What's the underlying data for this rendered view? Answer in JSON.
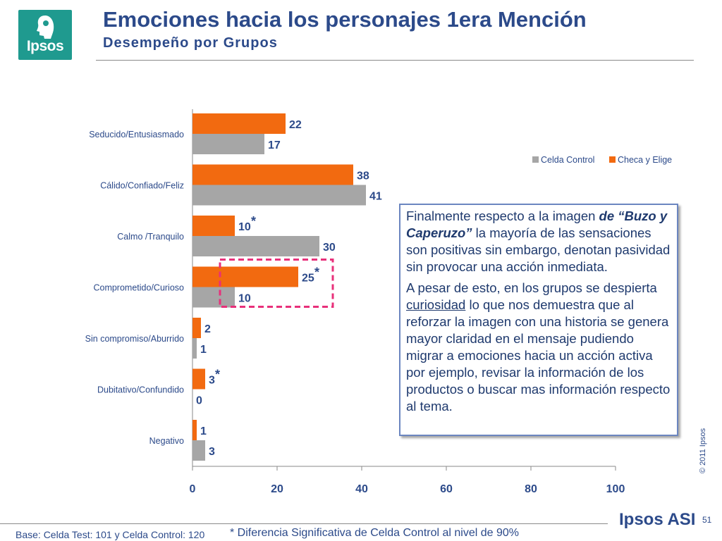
{
  "logo": {
    "text": "Ipsos"
  },
  "header": {
    "title": "Emociones hacia los personajes 1era Mención",
    "subtitle": "Desempeño por Grupos"
  },
  "colors": {
    "checa": "#f26a10",
    "control": "#a6a6a6",
    "accent": "#e8307a",
    "text": "#2c4a8a"
  },
  "chart_data": {
    "type": "bar",
    "orientation": "horizontal",
    "categories": [
      "Seducido/Entusiasmado",
      "Cálido/Confiado/Feliz",
      "Calmo /Tranquilo",
      "Comprometido/Curioso",
      "Sin compromiso/Aburrido",
      "Dubitativo/Confundido",
      "Negativo"
    ],
    "series": [
      {
        "name": "Checa y Elige",
        "values": [
          22,
          38,
          10,
          25,
          2,
          3,
          1
        ]
      },
      {
        "name": "Celda Control",
        "values": [
          17,
          41,
          30,
          10,
          1,
          0,
          3
        ]
      }
    ],
    "significance": [
      "",
      "",
      "*",
      "*",
      "",
      "*",
      ""
    ],
    "highlighted_category": "Comprometido/Curioso",
    "xlim": [
      0,
      100
    ],
    "xticks": [
      0,
      20,
      40,
      60,
      80,
      100
    ],
    "legend": {
      "placement": "top-right",
      "entries": [
        "Celda Control",
        "Checa y Elige"
      ]
    },
    "grid": false
  },
  "callout": {
    "p1_a": "Finalmente respecto a la imagen ",
    "p1_b": "de “Buzo y Caperuzo”",
    "p1_c": " la mayoría de las sensaciones son positivas sin embargo, denotan pasividad sin provocar una acción inmediata.",
    "p2_a": "A pesar de esto, en los grupos se despierta ",
    "p2_b": "curiosidad",
    "p2_c": " lo que nos demuestra que al reforzar la imagen con una historia se genera mayor claridad en el mensaje pudiendo migrar a emociones hacia un acción activa por ejemplo, revisar la información de los productos o buscar mas información respecto al tema."
  },
  "footer": {
    "copyright": "© 2011 Ipsos",
    "brand": "Ipsos ASI",
    "page": "51",
    "base": "Base: Celda Test: 101 y Celda Control: 120",
    "note": "* Diferencia Significativa de Celda Control al nivel de 90%"
  }
}
